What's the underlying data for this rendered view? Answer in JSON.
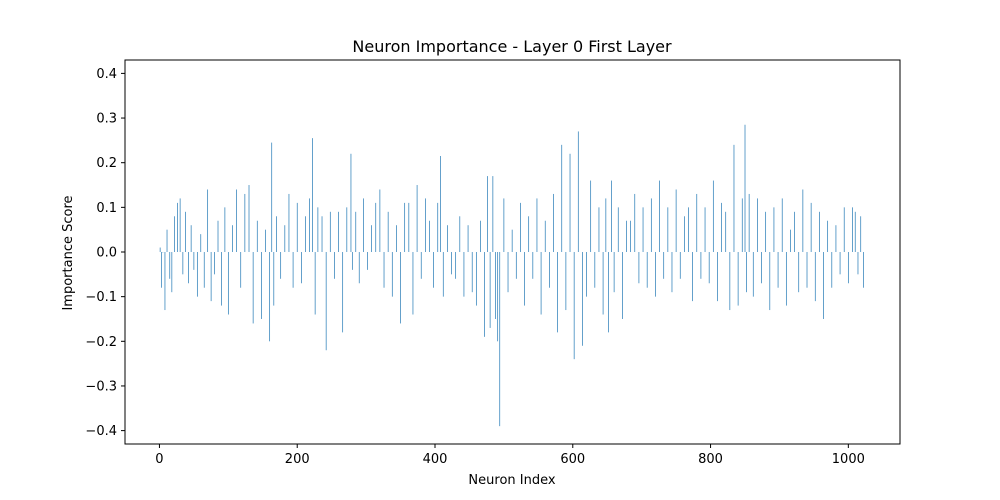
{
  "chart_data": {
    "type": "bar",
    "title": "Neuron Importance - Layer 0 First Layer",
    "xlabel": "Neuron Index",
    "ylabel": "Importance Score",
    "xlim": [
      -50,
      1075
    ],
    "ylim": [
      -0.43,
      0.43
    ],
    "xticks": [
      0,
      200,
      400,
      600,
      800,
      1000
    ],
    "yticks": [
      -0.4,
      -0.3,
      -0.2,
      -0.1,
      0.0,
      0.1,
      0.2,
      0.3,
      0.4
    ],
    "xtick_labels": [
      "0",
      "200",
      "400",
      "600",
      "800",
      "1000"
    ],
    "ytick_labels": [
      "−0.4",
      "−0.3",
      "−0.2",
      "−0.1",
      "0.0",
      "0.1",
      "0.2",
      "0.3",
      "0.4"
    ],
    "grid": false,
    "legend": false,
    "bar_color": "#1f77b4",
    "neuron_count": 1024,
    "x": [
      1,
      3,
      5,
      8,
      11,
      15,
      18,
      22,
      26,
      30,
      34,
      38,
      42,
      46,
      50,
      55,
      60,
      65,
      70,
      75,
      80,
      85,
      90,
      95,
      100,
      106,
      112,
      118,
      124,
      130,
      136,
      142,
      148,
      154,
      160,
      163,
      166,
      170,
      176,
      182,
      188,
      194,
      200,
      206,
      212,
      218,
      222,
      226,
      230,
      236,
      242,
      248,
      254,
      260,
      266,
      272,
      278,
      280,
      285,
      290,
      296,
      302,
      308,
      314,
      320,
      326,
      332,
      338,
      344,
      350,
      356,
      362,
      368,
      374,
      380,
      386,
      392,
      398,
      404,
      408,
      412,
      418,
      424,
      430,
      436,
      442,
      448,
      454,
      460,
      466,
      472,
      476,
      480,
      484,
      488,
      491,
      494,
      500,
      506,
      512,
      518,
      524,
      530,
      536,
      542,
      548,
      554,
      560,
      566,
      572,
      578,
      584,
      590,
      596,
      602,
      608,
      614,
      620,
      626,
      632,
      638,
      644,
      648,
      652,
      656,
      660,
      666,
      672,
      678,
      684,
      690,
      696,
      702,
      708,
      714,
      720,
      726,
      732,
      738,
      744,
      750,
      756,
      762,
      768,
      774,
      780,
      786,
      792,
      798,
      804,
      810,
      816,
      822,
      828,
      834,
      840,
      846,
      850,
      852,
      856,
      862,
      868,
      874,
      880,
      886,
      892,
      898,
      904,
      910,
      916,
      922,
      928,
      934,
      940,
      946,
      952,
      958,
      964,
      970,
      976,
      982,
      988,
      994,
      1000,
      1006,
      1010,
      1014,
      1018,
      1022
    ],
    "values": [
      0.01,
      -0.08,
      0.0,
      -0.13,
      0.05,
      -0.06,
      -0.09,
      0.08,
      0.11,
      0.12,
      -0.05,
      0.09,
      -0.07,
      0.06,
      -0.04,
      -0.1,
      0.04,
      -0.08,
      0.14,
      -0.11,
      -0.05,
      0.07,
      -0.12,
      0.1,
      -0.14,
      0.06,
      0.14,
      -0.08,
      0.13,
      0.15,
      -0.16,
      0.07,
      -0.15,
      0.05,
      -0.2,
      0.245,
      -0.12,
      0.08,
      -0.06,
      0.06,
      0.13,
      -0.08,
      0.11,
      -0.07,
      0.08,
      0.12,
      0.255,
      -0.14,
      0.1,
      0.08,
      -0.22,
      0.09,
      -0.06,
      0.09,
      -0.18,
      0.1,
      0.22,
      -0.04,
      0.09,
      -0.07,
      0.12,
      -0.04,
      0.06,
      0.11,
      0.14,
      -0.08,
      0.09,
      -0.1,
      0.06,
      -0.16,
      0.11,
      0.11,
      -0.14,
      0.15,
      -0.06,
      0.12,
      0.07,
      -0.08,
      0.11,
      0.215,
      -0.1,
      0.06,
      -0.05,
      -0.06,
      0.08,
      -0.1,
      0.06,
      -0.09,
      -0.12,
      0.07,
      -0.19,
      0.17,
      -0.17,
      0.17,
      -0.15,
      -0.2,
      -0.39,
      0.12,
      -0.09,
      0.05,
      -0.06,
      0.11,
      -0.12,
      0.08,
      -0.06,
      0.12,
      -0.14,
      0.07,
      -0.08,
      0.13,
      -0.18,
      0.24,
      -0.13,
      0.22,
      -0.24,
      0.27,
      -0.21,
      -0.1,
      0.16,
      -0.08,
      0.1,
      -0.14,
      0.12,
      -0.18,
      0.16,
      -0.09,
      0.1,
      -0.15,
      0.07,
      0.07,
      0.13,
      -0.07,
      0.1,
      -0.08,
      0.12,
      -0.1,
      0.16,
      -0.06,
      0.1,
      -0.09,
      0.14,
      -0.06,
      0.08,
      0.1,
      -0.11,
      0.13,
      -0.06,
      0.1,
      -0.07,
      0.16,
      -0.11,
      0.11,
      0.09,
      -0.13,
      0.24,
      -0.12,
      0.12,
      0.285,
      -0.09,
      0.13,
      -0.1,
      0.12,
      -0.07,
      0.09,
      -0.13,
      0.1,
      -0.08,
      0.12,
      -0.12,
      0.05,
      0.09,
      -0.09,
      0.14,
      -0.08,
      0.11,
      -0.11,
      0.09,
      -0.15,
      0.07,
      -0.08,
      0.06,
      -0.05,
      0.1,
      -0.07,
      0.1,
      0.09,
      -0.05,
      0.08,
      -0.08
    ]
  }
}
